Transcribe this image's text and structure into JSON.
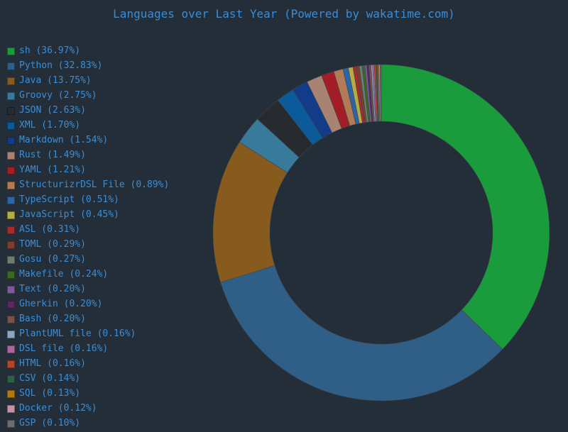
{
  "chart_data": {
    "type": "pie",
    "title": "Languages over Last Year (Powered by wakatime.com)",
    "hole": true,
    "slices": [
      {
        "label": "sh (36.97%)",
        "name": "sh",
        "value": 36.97,
        "color": "#1b9c3c"
      },
      {
        "label": "Python (32.83%)",
        "name": "Python",
        "value": 32.83,
        "color": "#2f5e87"
      },
      {
        "label": "Java (13.75%)",
        "name": "Java",
        "value": 13.75,
        "color": "#875a1e"
      },
      {
        "label": "Groovy (2.75%)",
        "name": "Groovy",
        "value": 2.75,
        "color": "#387a99"
      },
      {
        "label": "JSON (2.63%)",
        "name": "JSON",
        "value": 2.63,
        "color": "#272b30"
      },
      {
        "label": "XML (1.70%)",
        "name": "XML",
        "value": 1.7,
        "color": "#0b5a99"
      },
      {
        "label": "Markdown (1.54%)",
        "name": "Markdown",
        "value": 1.54,
        "color": "#123c87"
      },
      {
        "label": "Rust (1.49%)",
        "name": "Rust",
        "value": 1.49,
        "color": "#a88272"
      },
      {
        "label": "YAML (1.21%)",
        "name": "YAML",
        "value": 1.21,
        "color": "#a31d27"
      },
      {
        "label": "StructurizrDSL File (0.89%)",
        "name": "StructurizrDSL File",
        "value": 0.89,
        "color": "#b07b55"
      },
      {
        "label": "TypeScript (0.51%)",
        "name": "TypeScript",
        "value": 0.51,
        "color": "#2e64a5"
      },
      {
        "label": "JavaScript (0.45%)",
        "name": "JavaScript",
        "value": 0.45,
        "color": "#b3ac47"
      },
      {
        "label": "ASL (0.31%)",
        "name": "ASL",
        "value": 0.31,
        "color": "#a82a2a"
      },
      {
        "label": "TOML (0.29%)",
        "name": "TOML",
        "value": 0.29,
        "color": "#7a3f2d"
      },
      {
        "label": "Gosu (0.27%)",
        "name": "Gosu",
        "value": 0.27,
        "color": "#6d7c72"
      },
      {
        "label": "Makefile (0.24%)",
        "name": "Makefile",
        "value": 0.24,
        "color": "#3a6a22"
      },
      {
        "label": "Text (0.20%)",
        "name": "Text",
        "value": 0.2,
        "color": "#7a5a9a"
      },
      {
        "label": "Gherkin (0.20%)",
        "name": "Gherkin",
        "value": 0.2,
        "color": "#5a2860"
      },
      {
        "label": "Bash (0.20%)",
        "name": "Bash",
        "value": 0.2,
        "color": "#7a524a"
      },
      {
        "label": "PlantUML file (0.16%)",
        "name": "PlantUML file",
        "value": 0.16,
        "color": "#8aa6c2"
      },
      {
        "label": "DSL file (0.16%)",
        "name": "DSL file",
        "value": 0.16,
        "color": "#b0649c"
      },
      {
        "label": "HTML (0.16%)",
        "name": "HTML",
        "value": 0.16,
        "color": "#b5462c"
      },
      {
        "label": "CSV (0.14%)",
        "name": "CSV",
        "value": 0.14,
        "color": "#2d6045"
      },
      {
        "label": "SQL (0.13%)",
        "name": "SQL",
        "value": 0.13,
        "color": "#b0780e"
      },
      {
        "label": "Docker (0.12%)",
        "name": "Docker",
        "value": 0.12,
        "color": "#c494a6"
      },
      {
        "label": "GSP (0.10%)",
        "name": "GSP",
        "value": 0.1,
        "color": "#6a6e6e"
      }
    ]
  }
}
